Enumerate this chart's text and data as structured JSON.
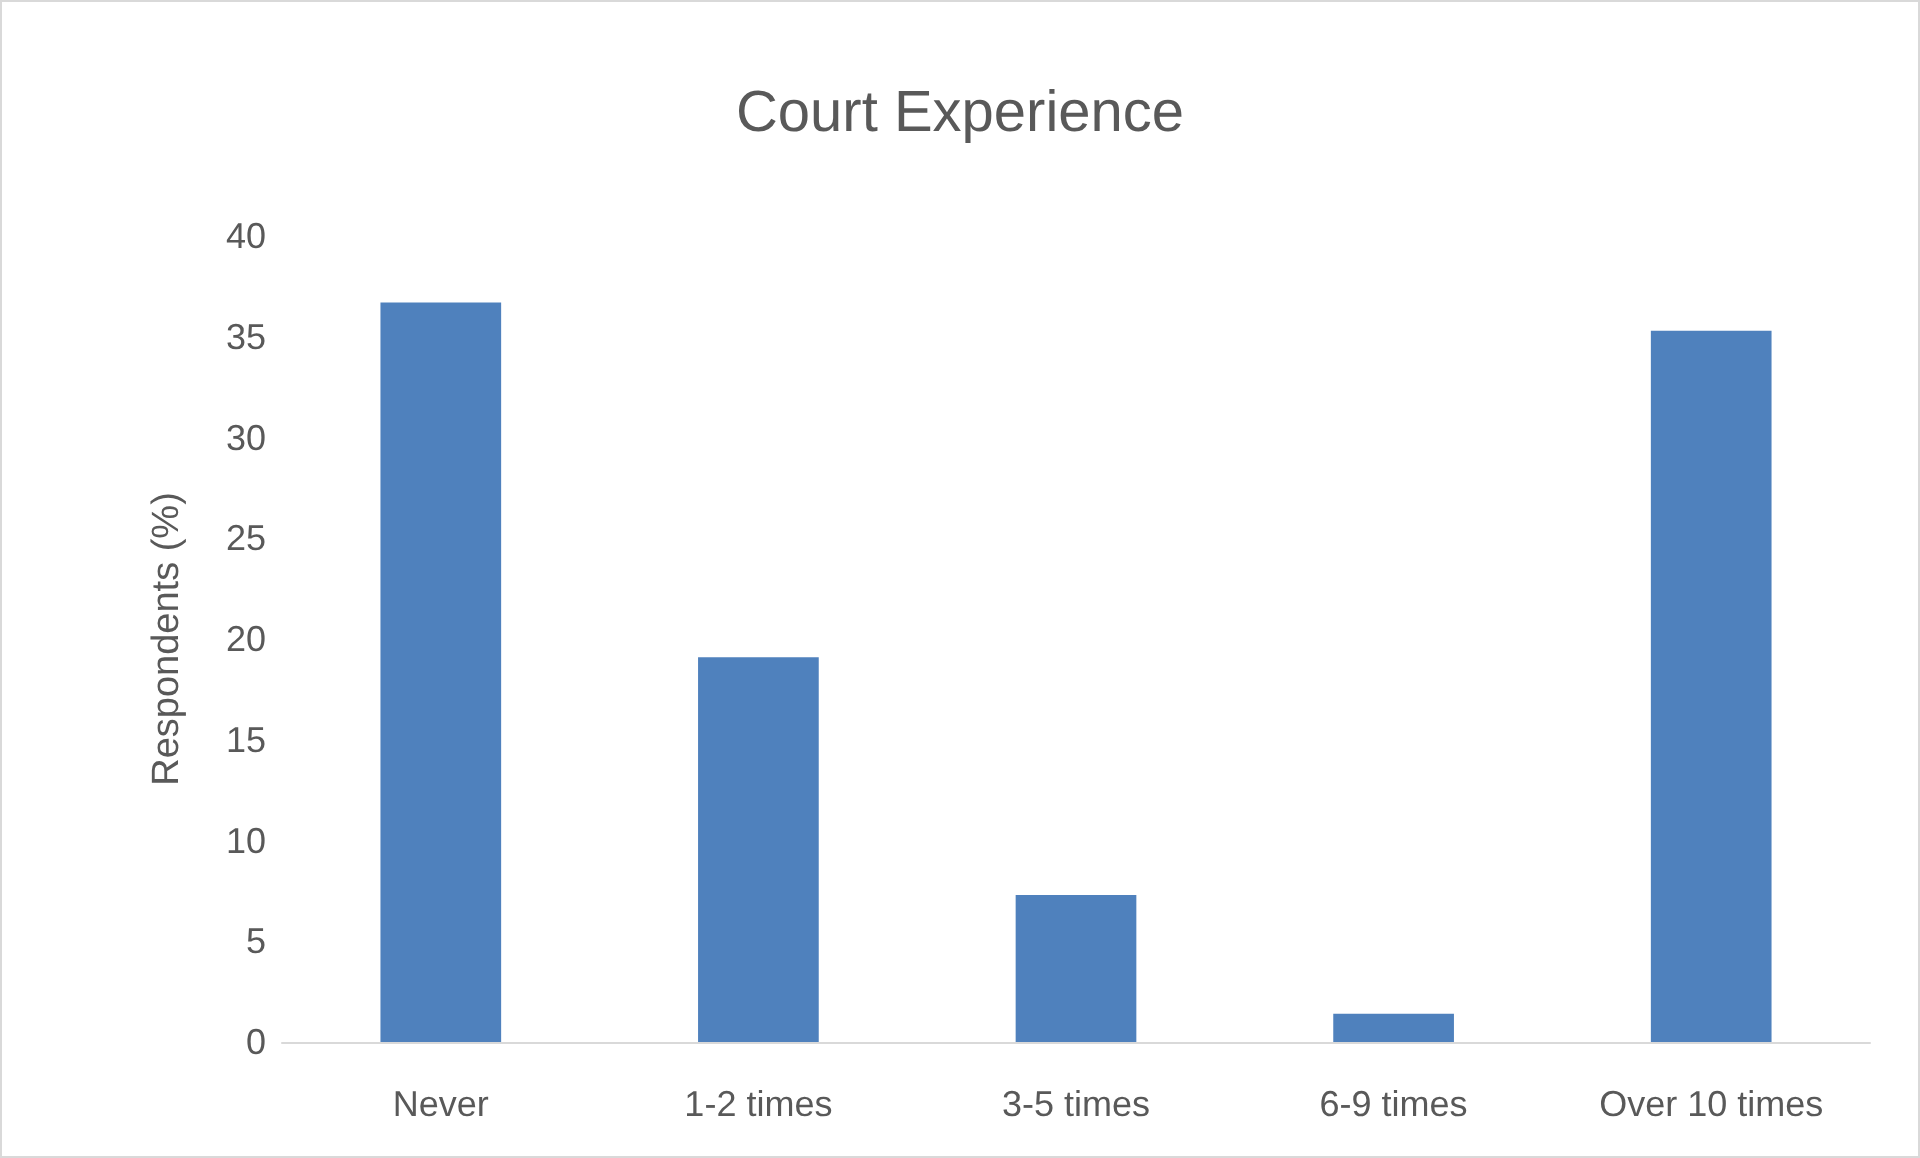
{
  "chart_data": {
    "type": "bar",
    "title": "Court Experience",
    "ylabel": "Respondents (%)",
    "categories": [
      "Never",
      "1-2 times",
      "3-5 times",
      "6-9 times",
      "Over 10 times"
    ],
    "values": [
      36.7,
      19.1,
      7.3,
      1.4,
      35.3
    ],
    "color": "#4f81bd",
    "ylim": [
      0,
      40
    ],
    "yticks": [
      0,
      5,
      10,
      15,
      20,
      25,
      30,
      35,
      40
    ],
    "grid": false
  }
}
